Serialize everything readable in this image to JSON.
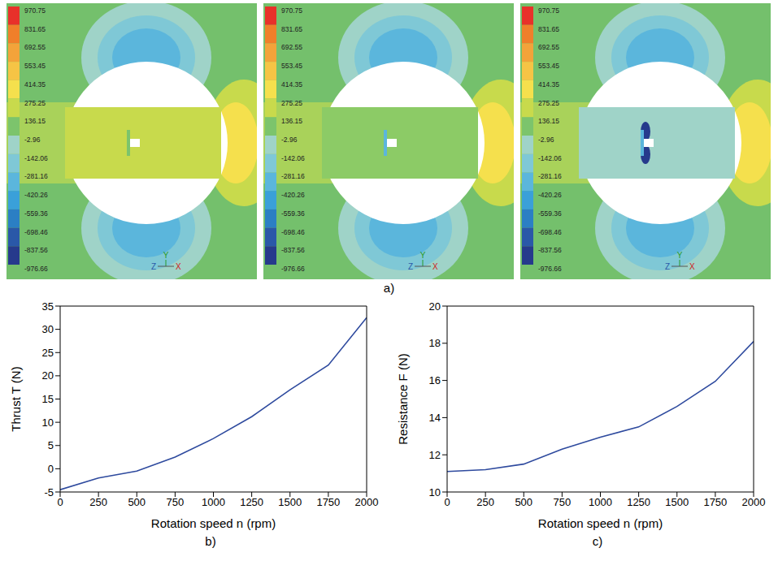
{
  "panel_a": {
    "label": "a)",
    "colorbar_ticks": [
      970.75,
      831.65,
      692.55,
      553.45,
      414.35,
      275.25,
      136.15,
      -2.96,
      -142.06,
      -281.16,
      -420.26,
      -559.36,
      -698.46,
      -837.56,
      -976.66
    ],
    "triad": {
      "up": "Y",
      "left": "Z",
      "right": "X"
    }
  },
  "chart_data": [
    {
      "type": "line",
      "panel_label": "b)",
      "x_label": "Rotation speed n (rpm)",
      "y_label": "Thrust T (N)",
      "x": [
        0,
        250,
        500,
        750,
        1000,
        1250,
        1500,
        1750,
        2000
      ],
      "values": [
        -4.5,
        -2,
        -0.5,
        2.5,
        6.5,
        11.2,
        17,
        22.3,
        32.5
      ],
      "color": "#2e4a9e",
      "xlim": [
        0,
        2000
      ],
      "xticks": [
        0,
        250,
        500,
        750,
        1000,
        1250,
        1500,
        1750,
        2000
      ],
      "ylim": [
        -5,
        35
      ],
      "yticks": [
        -5,
        0,
        5,
        10,
        15,
        20,
        25,
        30,
        35
      ],
      "grid": false
    },
    {
      "type": "line",
      "panel_label": "c)",
      "x_label": "Rotation speed n (rpm)",
      "y_label": "Resistance F (N)",
      "x": [
        0,
        250,
        500,
        750,
        1000,
        1250,
        1500,
        1750,
        2000
      ],
      "values": [
        11.1,
        11.2,
        11.5,
        12.3,
        12.95,
        13.5,
        14.6,
        15.95,
        18.1
      ],
      "color": "#2e4a9e",
      "xlim": [
        0,
        2000
      ],
      "xticks": [
        0,
        250,
        500,
        750,
        1000,
        1250,
        1500,
        1750,
        2000
      ],
      "ylim": [
        10,
        20
      ],
      "yticks": [
        10,
        12,
        14,
        16,
        18,
        20
      ],
      "grid": false
    }
  ]
}
